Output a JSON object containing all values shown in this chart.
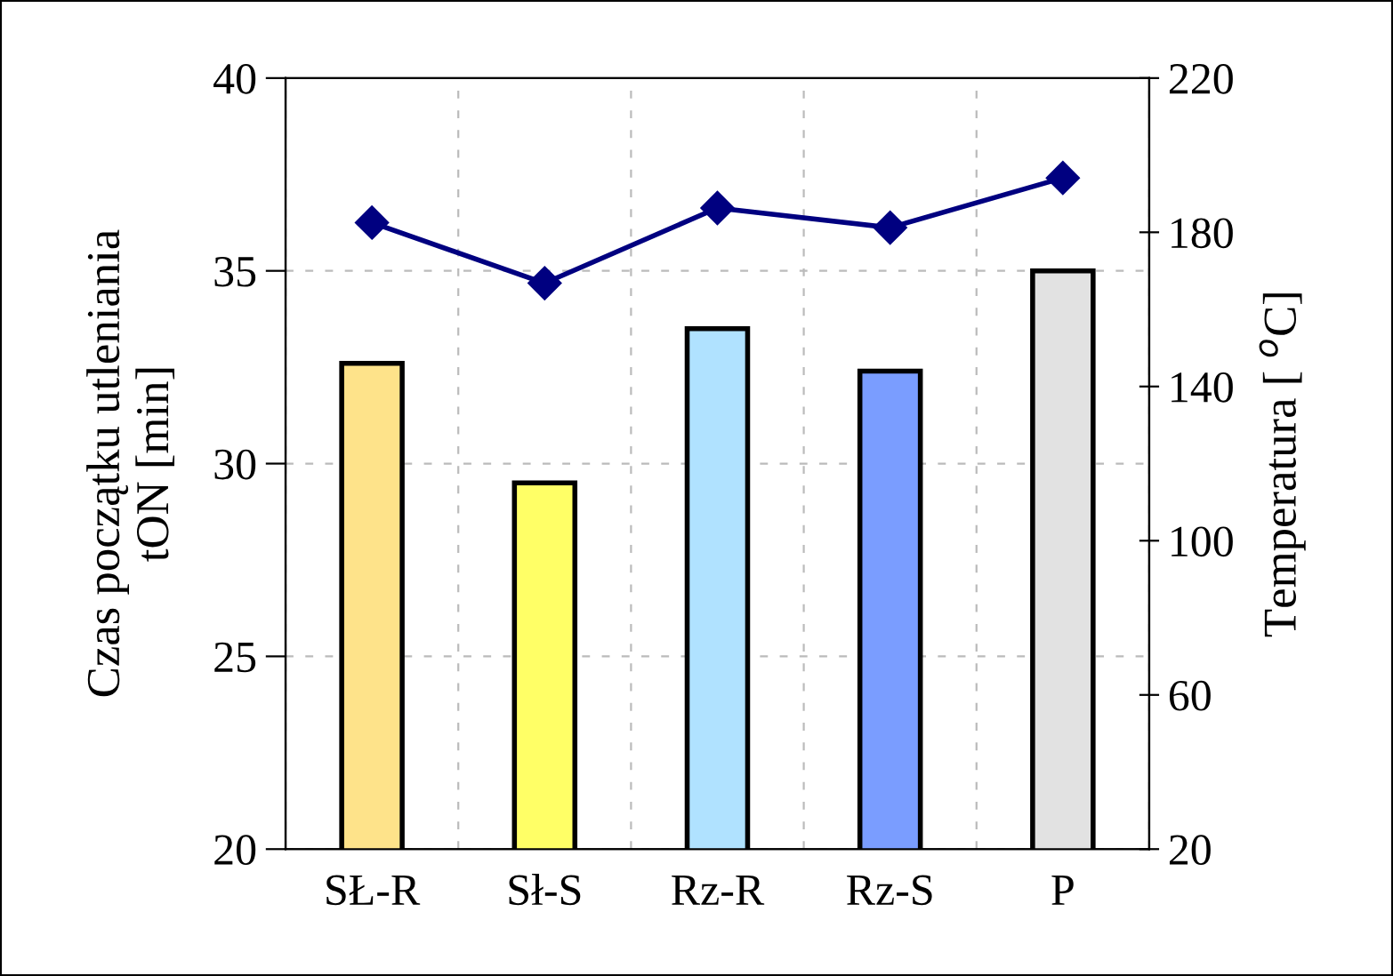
{
  "chart_data": {
    "type": "bar",
    "ylabel": "Czas początku utleniania\ntON [min]",
    "y2label": "Temperatura [ $^{o}$C]",
    "categories": [
      "SŁ-R",
      "Sł-S",
      "Rz-R",
      "Rz-S",
      "P"
    ],
    "series": [
      {
        "colors": [
          "#fee38a",
          "#ffff66",
          "#b0e2ff",
          "#7a9dff",
          "#e2e2e2"
        ],
        "values": [
          32.6,
          29.5,
          33.5,
          32.4,
          35.0
        ]
      },
      {
        "type": "line",
        "axis": "y2",
        "color": "#000080",
        "marker": "diamond",
        "line_style": "solid",
        "values": [
          182.5,
          166.8,
          186.3,
          181.2,
          194.1
        ]
      }
    ],
    "ylim": [
      20,
      40
    ],
    "yticks": [
      20,
      25,
      30,
      35,
      40
    ],
    "y2lim": [
      20,
      220
    ],
    "y2ticks": [
      20,
      60,
      100,
      140,
      180,
      220
    ],
    "grid": true
  }
}
